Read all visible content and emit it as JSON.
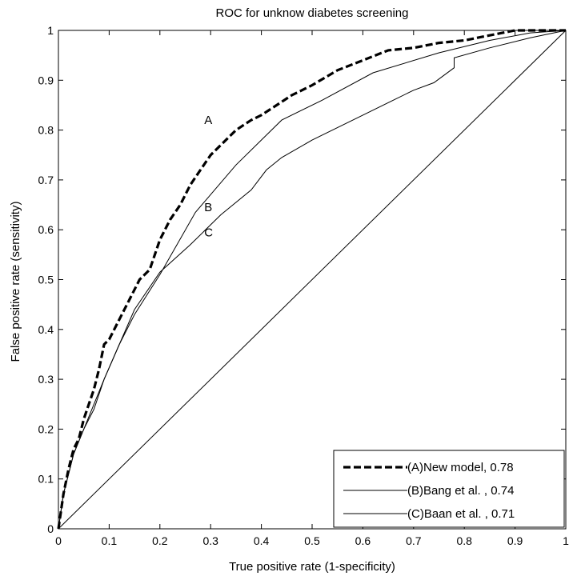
{
  "chart_data": {
    "type": "line",
    "title": "ROC for unknow diabetes screening",
    "xlabel": "True positive rate (1-specificity)",
    "ylabel": "False positive rate (sensitivity)",
    "xlim": [
      0,
      1
    ],
    "ylim": [
      0,
      1
    ],
    "x_ticks": [
      "0",
      "0.1",
      "0.2",
      "0.3",
      "0.4",
      "0.5",
      "0.6",
      "0.7",
      "0.8",
      "0.9",
      "1"
    ],
    "y_ticks": [
      "0",
      "0.1",
      "0.2",
      "0.3",
      "0.4",
      "0.5",
      "0.6",
      "0.7",
      "0.8",
      "0.9",
      "1"
    ],
    "grid": false,
    "legend_position": "bottom-right",
    "series": [
      {
        "name": "(A)New model, 0.78",
        "style": "dashed-bold",
        "x": [
          0,
          0.01,
          0.02,
          0.03,
          0.04,
          0.05,
          0.06,
          0.07,
          0.08,
          0.09,
          0.1,
          0.12,
          0.14,
          0.16,
          0.18,
          0.2,
          0.22,
          0.24,
          0.26,
          0.28,
          0.3,
          0.32,
          0.35,
          0.38,
          0.4,
          0.43,
          0.46,
          0.5,
          0.55,
          0.6,
          0.65,
          0.7,
          0.75,
          0.8,
          0.85,
          0.9,
          0.95,
          1
        ],
        "y": [
          0,
          0.07,
          0.12,
          0.16,
          0.18,
          0.22,
          0.25,
          0.28,
          0.32,
          0.37,
          0.38,
          0.42,
          0.46,
          0.5,
          0.52,
          0.58,
          0.62,
          0.65,
          0.69,
          0.72,
          0.75,
          0.77,
          0.8,
          0.82,
          0.83,
          0.85,
          0.87,
          0.89,
          0.92,
          0.94,
          0.96,
          0.965,
          0.975,
          0.98,
          0.99,
          1,
          1,
          1
        ]
      },
      {
        "name": "(B)Bang et al. , 0.74",
        "style": "solid-thin",
        "x": [
          0,
          0.01,
          0.02,
          0.03,
          0.05,
          0.07,
          0.09,
          0.12,
          0.15,
          0.2,
          0.27,
          0.35,
          0.44,
          0.52,
          0.62,
          0.75,
          0.85,
          0.93,
          1
        ],
        "y": [
          0,
          0.07,
          0.11,
          0.15,
          0.2,
          0.25,
          0.3,
          0.37,
          0.43,
          0.51,
          0.635,
          0.73,
          0.82,
          0.86,
          0.915,
          0.955,
          0.98,
          0.995,
          1
        ]
      },
      {
        "name": "(C)Baan et al. , 0.71",
        "style": "solid-thin",
        "x": [
          0,
          0.01,
          0.02,
          0.03,
          0.05,
          0.07,
          0.09,
          0.12,
          0.15,
          0.2,
          0.26,
          0.32,
          0.38,
          0.41,
          0.44,
          0.5,
          0.6,
          0.7,
          0.74,
          0.78,
          0.78,
          0.85,
          0.93,
          1
        ],
        "y": [
          0,
          0.07,
          0.11,
          0.15,
          0.2,
          0.24,
          0.3,
          0.37,
          0.44,
          0.515,
          0.57,
          0.63,
          0.68,
          0.72,
          0.745,
          0.78,
          0.83,
          0.88,
          0.895,
          0.925,
          0.945,
          0.965,
          0.985,
          1
        ]
      },
      {
        "name": "",
        "style": "solid-thin",
        "x": [
          0,
          1
        ],
        "y": [
          0,
          1
        ]
      }
    ],
    "annotations": [
      {
        "text": "A",
        "x": 0.3,
        "y": 0.82
      },
      {
        "text": "B",
        "x": 0.3,
        "y": 0.645
      },
      {
        "text": "C",
        "x": 0.3,
        "y": 0.595
      }
    ]
  }
}
